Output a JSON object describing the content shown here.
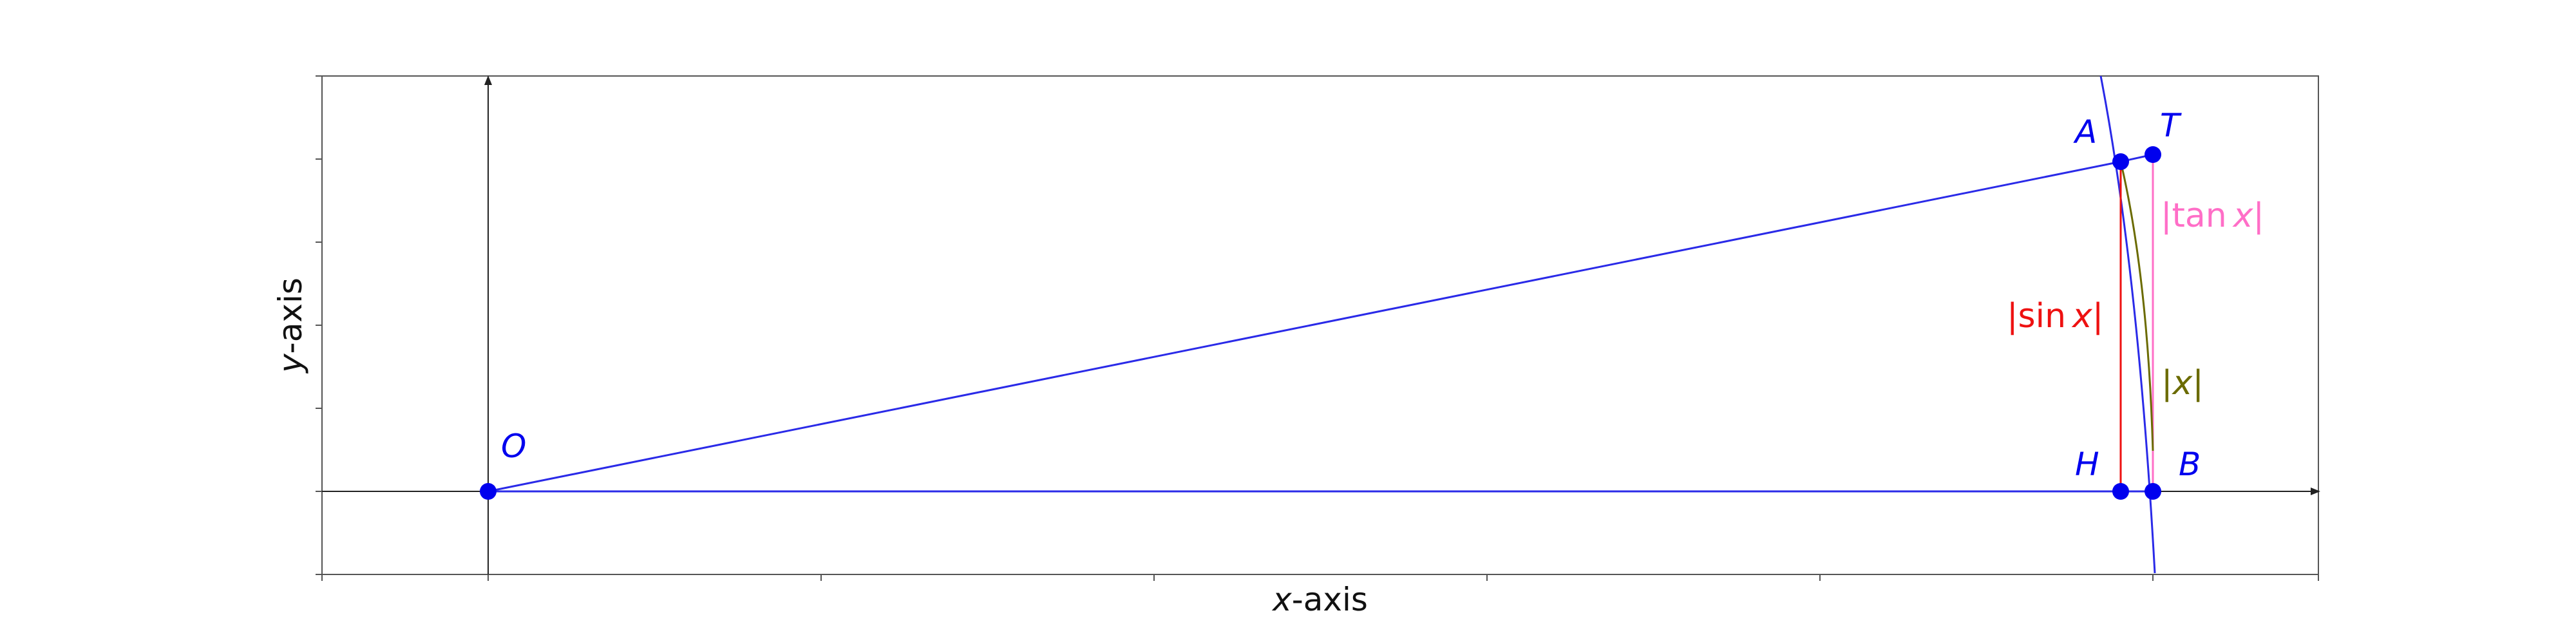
{
  "axes": {
    "xlabel_var": "x",
    "xlabel_rest": "-axis",
    "ylabel_var": "y",
    "ylabel_rest": "-axis"
  },
  "points": {
    "O": "O",
    "A": "A",
    "T": "T",
    "H": "H",
    "B": "B"
  },
  "segments": {
    "sin_bar_open": "|",
    "sin_fn": "sin",
    "sin_var": "x",
    "sin_bar_close": "|",
    "tan_bar_open": "|",
    "tan_fn": "tan",
    "tan_var": "x",
    "tan_bar_close": "|",
    "arc_bar_open": "|",
    "arc_var": "x",
    "arc_bar_close": "|"
  },
  "colors": {
    "points": "#0000ee",
    "radius": "#2a2ae8",
    "sin": "#ee1111",
    "tan": "#ff6ec7",
    "arc": "#6b6b00"
  }
}
